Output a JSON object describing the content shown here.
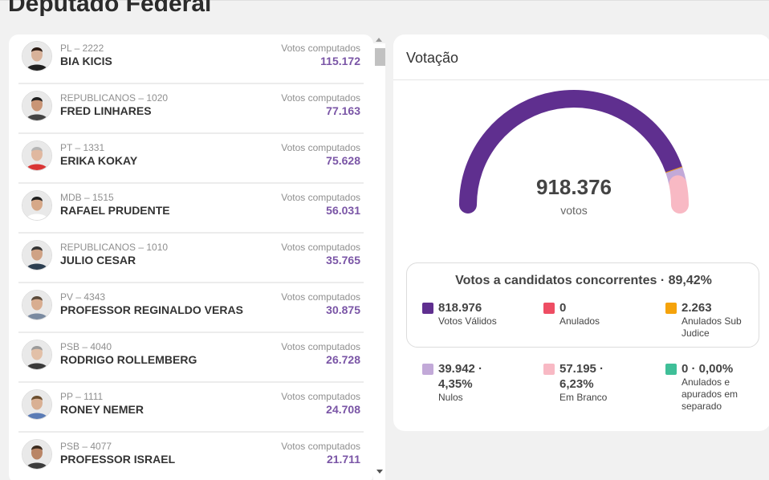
{
  "page": {
    "title": "Deputado Federal"
  },
  "candidates": [
    {
      "party": "PL – 2222",
      "name": "BIA KICIS",
      "votes_label": "Votos computados",
      "votes": "115.172"
    },
    {
      "party": "REPUBLICANOS – 1020",
      "name": "FRED LINHARES",
      "votes_label": "Votos computados",
      "votes": "77.163"
    },
    {
      "party": "PT – 1331",
      "name": "ERIKA KOKAY",
      "votes_label": "Votos computados",
      "votes": "75.628"
    },
    {
      "party": "MDB – 1515",
      "name": "RAFAEL PRUDENTE",
      "votes_label": "Votos computados",
      "votes": "56.031"
    },
    {
      "party": "REPUBLICANOS – 1010",
      "name": "JULIO CESAR",
      "votes_label": "Votos computados",
      "votes": "35.765"
    },
    {
      "party": "PV – 4343",
      "name": "PROFESSOR REGINALDO VERAS",
      "votes_label": "Votos computados",
      "votes": "30.875"
    },
    {
      "party": "PSB – 4040",
      "name": "RODRIGO ROLLEMBERG",
      "votes_label": "Votos computados",
      "votes": "26.728"
    },
    {
      "party": "PP – 1111",
      "name": "RONEY NEMER",
      "votes_label": "Votos computados",
      "votes": "24.708"
    },
    {
      "party": "PSB – 4077",
      "name": "PROFESSOR ISRAEL",
      "votes_label": "Votos computados",
      "votes": "21.711"
    }
  ],
  "voting": {
    "title": "Votação",
    "total": "918.376",
    "total_unit": "votos",
    "gauge_shares": {
      "valid": 0.8918,
      "sub_judice": 0.0025,
      "nulos": 0.0435,
      "branco": 0.0623
    },
    "summary_title": "Votos a candidatos concorrentes · 89,42%",
    "stats": {
      "validos": {
        "value": "818.976",
        "label": "Votos Válidos",
        "color": "#5f2f8f"
      },
      "anulados": {
        "value": "0",
        "label": "Anulados",
        "color": "#ee4d63"
      },
      "sub_judice": {
        "value": "2.263",
        "label": "Anulados Sub Judice",
        "color": "#f5a30b"
      },
      "nulos": {
        "value": "39.942 · 4,35%",
        "label": "Nulos",
        "color": "#c2a9d8"
      },
      "branco": {
        "value": "57.195 · 6,23%",
        "label": "Em Branco",
        "color": "#f8b9c4"
      },
      "separado": {
        "value": "0 · 0,00%",
        "label": "Anulados e apurados em separado",
        "color": "#3fbf98"
      }
    }
  },
  "colors": {
    "accent": "#7a55a6",
    "gauge_main": "#5f2f8f"
  },
  "icons": {
    "avatar": "person-avatar-icon",
    "scroll_up": "scroll-up-arrow-icon",
    "scroll_down": "scroll-down-arrow-icon"
  }
}
